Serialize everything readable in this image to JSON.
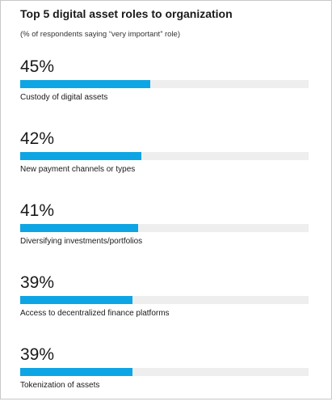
{
  "chart_data": {
    "type": "bar",
    "orientation": "horizontal",
    "title": "Top 5 digital asset roles to organization",
    "subtitle": "(% of respondents saying “very important” role)",
    "xlim": [
      0,
      100
    ],
    "bar_color": "#0ea5e4",
    "track_color": "#eeeeee",
    "items": [
      {
        "label": "Custody of digital assets",
        "value": 45,
        "display": "45%"
      },
      {
        "label": "New payment channels or types",
        "value": 42,
        "display": "42%"
      },
      {
        "label": "Diversifying investments/portfolios",
        "value": 41,
        "display": "41%"
      },
      {
        "label": "Access to decentralized finance platforms",
        "value": 39,
        "display": "39%"
      },
      {
        "label": "Tokenization of assets",
        "value": 39,
        "display": "39%"
      }
    ]
  }
}
